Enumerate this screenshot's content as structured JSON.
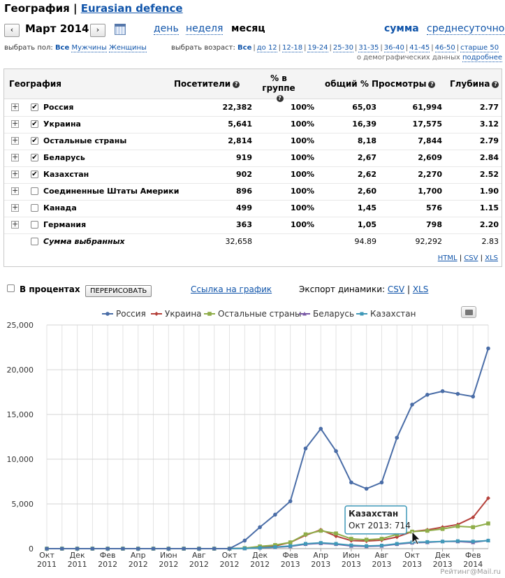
{
  "header": {
    "section": "География",
    "separator": "|",
    "site": "Eurasian defence",
    "month": "Март 2014",
    "prev": "‹",
    "next": "›",
    "periods": [
      "день",
      "неделя",
      "месяц"
    ],
    "mode_sum": "сумма",
    "mode_avg": "среднесуточное"
  },
  "filters": {
    "gender_label": "выбрать пол:",
    "gender": [
      "Все",
      "Мужчины",
      "Женщины"
    ],
    "age_label": "выбрать возраст:",
    "age": [
      "Все",
      "до 12",
      "12-18",
      "19-24",
      "25-30",
      "31-35",
      "36-40",
      "41-45",
      "46-50",
      "старше 50"
    ],
    "demo_note": "о демографических данных",
    "demo_link": "подробнее"
  },
  "table": {
    "headers": {
      "geo": "География",
      "visitors": "Посетители",
      "pct_group": "% в группе",
      "total_pct": "общий %",
      "views": "Просмотры",
      "depth": "Глубина"
    },
    "rows": [
      {
        "name": "Россия",
        "checked": true,
        "visitors": "22,382",
        "pct": "100%",
        "total": "65,03",
        "views": "61,994",
        "depth": "2.77"
      },
      {
        "name": "Украина",
        "checked": true,
        "visitors": "5,641",
        "pct": "100%",
        "total": "16,39",
        "views": "17,575",
        "depth": "3.12"
      },
      {
        "name": "Остальные страны",
        "checked": true,
        "visitors": "2,814",
        "pct": "100%",
        "total": "8,18",
        "views": "7,844",
        "depth": "2.79"
      },
      {
        "name": "Беларусь",
        "checked": true,
        "visitors": "919",
        "pct": "100%",
        "total": "2,67",
        "views": "2,609",
        "depth": "2.84"
      },
      {
        "name": "Казахстан",
        "checked": true,
        "visitors": "902",
        "pct": "100%",
        "total": "2,62",
        "views": "2,270",
        "depth": "2.52"
      },
      {
        "name": "Соединенные Штаты Америки",
        "checked": false,
        "visitors": "896",
        "pct": "100%",
        "total": "2,60",
        "views": "1,700",
        "depth": "1.90"
      },
      {
        "name": "Канада",
        "checked": false,
        "visitors": "499",
        "pct": "100%",
        "total": "1,45",
        "views": "576",
        "depth": "1.15"
      },
      {
        "name": "Германия",
        "checked": false,
        "visitors": "363",
        "pct": "100%",
        "total": "1,05",
        "views": "798",
        "depth": "2.20"
      }
    ],
    "total": {
      "name": "Сумма выбранных",
      "visitors": "32,658",
      "total": "94.89",
      "views": "92,292",
      "depth": "2.83"
    },
    "exports": [
      "HTML",
      "CSV",
      "XLS"
    ]
  },
  "controls": {
    "percent_label": "В процентах",
    "redraw": "ПЕРЕРИСОВАТЬ",
    "chart_link": "Ссылка на график",
    "export_label": "Экспорт динамики:",
    "export_csv": "CSV",
    "export_xls": "XLS",
    "export_sep": "|"
  },
  "tooltip": {
    "title": "Казахстан",
    "text": "Окт 2013: 714",
    "x_index": 24,
    "value": 714
  },
  "credit": "Рейтинг@Mail.ru",
  "chart_data": {
    "type": "line",
    "ylim": [
      0,
      25000
    ],
    "yticks": [
      "0",
      "5,000",
      "10,000",
      "15,000",
      "20,000",
      "25,000"
    ],
    "ytick_values": [
      0,
      5000,
      10000,
      15000,
      20000,
      25000
    ],
    "x": [
      "Окт 2011",
      "Ноя 2011",
      "Дек 2011",
      "Янв 2012",
      "Фев 2012",
      "Мар 2012",
      "Апр 2012",
      "Май 2012",
      "Июн 2012",
      "Июл 2012",
      "Авг 2012",
      "Сен 2012",
      "Окт 2012",
      "Ноя 2012",
      "Дек 2012",
      "Янв 2013",
      "Фев 2013",
      "Мар 2013",
      "Апр 2013",
      "Май 2013",
      "Июн 2013",
      "Июл 2013",
      "Авг 2013",
      "Сен 2013",
      "Окт 2013",
      "Ноя 2013",
      "Дек 2013",
      "Янв 2014",
      "Фев 2014",
      "Мар 2014"
    ],
    "xtick_labels": [
      {
        "index": 0,
        "month": "Окт",
        "year": "2011"
      },
      {
        "index": 2,
        "month": "Дек",
        "year": "2011"
      },
      {
        "index": 4,
        "month": "Фев",
        "year": "2012"
      },
      {
        "index": 6,
        "month": "Апр",
        "year": "2012"
      },
      {
        "index": 8,
        "month": "Июн",
        "year": "2012"
      },
      {
        "index": 10,
        "month": "Авг",
        "year": "2012"
      },
      {
        "index": 12,
        "month": "Окт",
        "year": "2012"
      },
      {
        "index": 14,
        "month": "Дек",
        "year": "2012"
      },
      {
        "index": 16,
        "month": "Фев",
        "year": "2013"
      },
      {
        "index": 18,
        "month": "Апр",
        "year": "2013"
      },
      {
        "index": 20,
        "month": "Июн",
        "year": "2013"
      },
      {
        "index": 22,
        "month": "Авг",
        "year": "2013"
      },
      {
        "index": 24,
        "month": "Окт",
        "year": "2013"
      },
      {
        "index": 26,
        "month": "Дек",
        "year": "2013"
      },
      {
        "index": 28,
        "month": "Фев",
        "year": "2014"
      }
    ],
    "legend_position": "top",
    "grid": true,
    "series": [
      {
        "name": "Россия",
        "color": "#4a6da7",
        "marker": "circle",
        "values": [
          0,
          0,
          0,
          0,
          0,
          0,
          0,
          0,
          0,
          0,
          0,
          0,
          0,
          900,
          2400,
          3800,
          5300,
          11200,
          13400,
          10900,
          7400,
          6700,
          7400,
          12400,
          16100,
          17200,
          17600,
          17300,
          17000,
          22382
        ]
      },
      {
        "name": "Украина",
        "color": "#b5413b",
        "marker": "diamond",
        "values": [
          0,
          0,
          0,
          0,
          0,
          0,
          0,
          0,
          0,
          0,
          0,
          0,
          0,
          50,
          200,
          300,
          700,
          1500,
          2100,
          1400,
          900,
          850,
          950,
          1300,
          1900,
          2100,
          2400,
          2700,
          3500,
          5641
        ]
      },
      {
        "name": "Остальные страны",
        "color": "#8fad49",
        "marker": "square",
        "values": [
          0,
          0,
          0,
          0,
          0,
          0,
          0,
          0,
          0,
          0,
          0,
          0,
          0,
          60,
          250,
          400,
          700,
          1600,
          2000,
          1700,
          1100,
          1000,
          1100,
          1600,
          1900,
          2000,
          2200,
          2500,
          2400,
          2814
        ]
      },
      {
        "name": "Беларусь",
        "color": "#7a5aa6",
        "marker": "triangle",
        "values": [
          0,
          0,
          0,
          0,
          0,
          0,
          0,
          0,
          0,
          0,
          0,
          0,
          0,
          20,
          80,
          150,
          250,
          500,
          600,
          500,
          300,
          250,
          300,
          500,
          650,
          700,
          800,
          800,
          700,
          919
        ]
      },
      {
        "name": "Казахстан",
        "color": "#3f98b8",
        "marker": "x",
        "values": [
          0,
          0,
          0,
          0,
          0,
          0,
          0,
          0,
          0,
          0,
          0,
          0,
          0,
          20,
          90,
          180,
          300,
          550,
          650,
          550,
          380,
          300,
          350,
          550,
          714,
          750,
          800,
          850,
          800,
          902
        ]
      }
    ]
  }
}
